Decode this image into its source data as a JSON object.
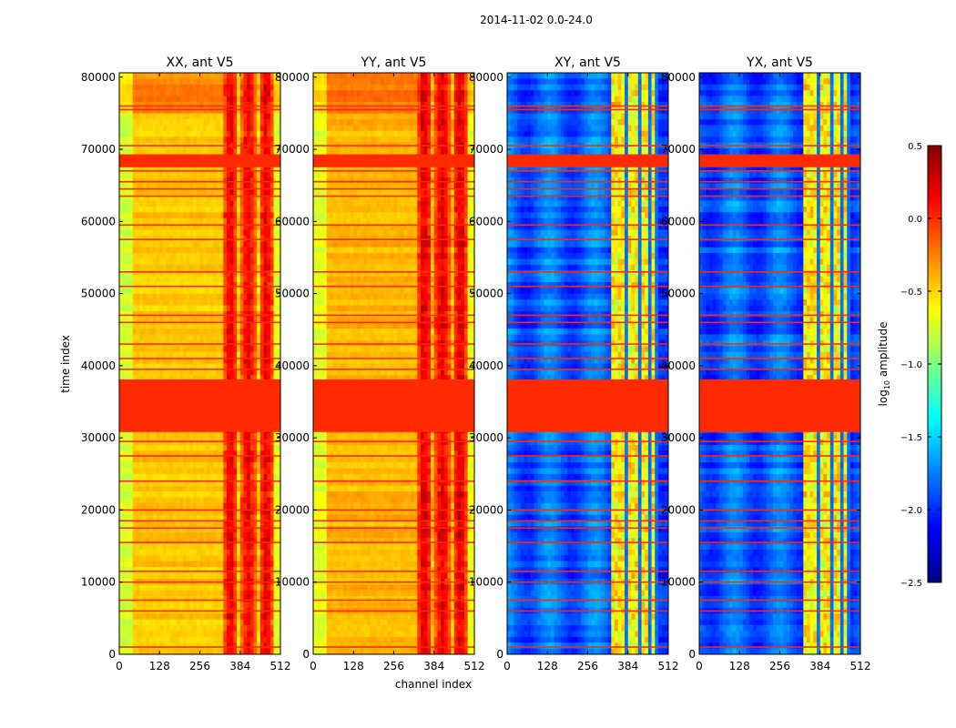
{
  "chart_data": {
    "type": "heatmap",
    "suptitle": "2014-11-02 0.0-24.0",
    "xlabel": "channel index",
    "ylabel": "time index",
    "xlim": [
      0,
      512
    ],
    "ylim": [
      0,
      80600
    ],
    "xticks": [
      "0",
      "128",
      "256",
      "384",
      "512"
    ],
    "yticks": [
      "0",
      "10000",
      "20000",
      "30000",
      "40000",
      "50000",
      "60000",
      "70000",
      "80000"
    ],
    "colormap": "jet",
    "colorbar": {
      "label_main": "log",
      "label_sub": "10",
      "label_rest": " amplitude",
      "range": [
        -2.5,
        0.5
      ],
      "ticks": [
        "0.5",
        "0.0",
        "−0.5",
        "−1.0",
        "−1.5",
        "−2.0",
        "−2.5"
      ]
    },
    "flag_value": 0.0,
    "flag_bands_time": [
      [
        30800,
        38100
      ],
      [
        67500,
        69300
      ]
    ],
    "flag_lines_time": [
      1000,
      6000,
      7500,
      10000,
      11500,
      15500,
      17500,
      18500,
      20000,
      24000,
      27500,
      29500,
      39500,
      41000,
      43000,
      46000,
      47000,
      51000,
      53000,
      57500,
      59500,
      63500,
      64500,
      65500,
      67000,
      70500,
      75500,
      76000
    ],
    "panels": [
      {
        "title": "XX, ant V5",
        "pol": "parallel",
        "base_log_amp": -0.5,
        "hot_channels": [
          330,
          490
        ],
        "hot_log_amp": -0.05
      },
      {
        "title": "YY, ant V5",
        "pol": "parallel",
        "base_log_amp": -0.45,
        "hot_channels": [
          330,
          490
        ],
        "hot_log_amp": 0.0
      },
      {
        "title": "XY, ant V5",
        "pol": "cross",
        "base_log_amp": -1.9,
        "hot_channels": [
          335,
          480
        ],
        "hot_log_amp": -0.7
      },
      {
        "title": "YX, ant V5",
        "pol": "cross",
        "base_log_amp": -1.9,
        "hot_channels": [
          335,
          480
        ],
        "hot_log_amp": -0.7
      }
    ]
  }
}
